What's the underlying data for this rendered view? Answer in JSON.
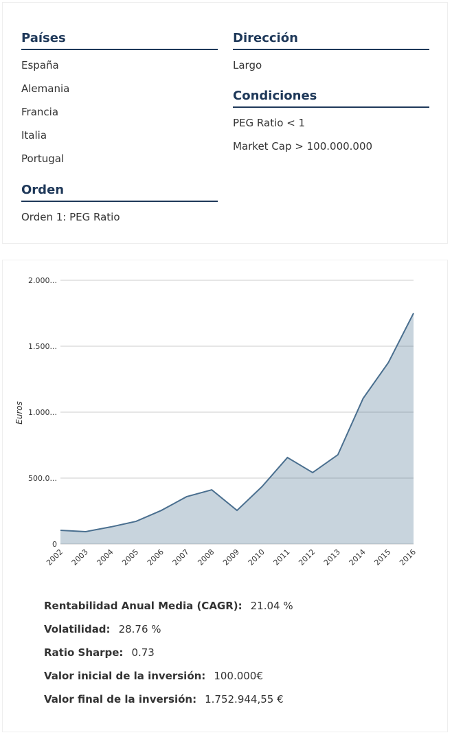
{
  "criteria": {
    "paises": {
      "title": "Países",
      "items": [
        "España",
        "Alemania",
        "Francia",
        "Italia",
        "Portugal"
      ]
    },
    "orden": {
      "title": "Orden",
      "items": [
        "Orden 1: PEG Ratio"
      ]
    },
    "direccion": {
      "title": "Dirección",
      "items": [
        "Largo"
      ]
    },
    "condiciones": {
      "title": "Condiciones",
      "items": [
        "PEG Ratio < 1",
        "Market Cap > 100.000.000"
      ]
    }
  },
  "chart_data": {
    "type": "area",
    "y_label": "Euros",
    "categories": [
      "2002",
      "2003",
      "2004",
      "2005",
      "2006",
      "2007",
      "2008",
      "2009",
      "2010",
      "2011",
      "2012",
      "2013",
      "2014",
      "2015",
      "2016"
    ],
    "series": [
      {
        "color": "#4a6f8f",
        "values": [
          104,
          94,
          130,
          172,
          255,
          359,
          411,
          255,
          437,
          656,
          542,
          677,
          1104,
          1375,
          1750
        ]
      }
    ],
    "ylim": [
      0,
      2000
    ],
    "yticks": [
      0,
      {
        "value": 500,
        "label": "500.0..."
      },
      {
        "value": 1000,
        "label": "1.000..."
      },
      {
        "value": 1500,
        "label": "1.500..."
      },
      {
        "value": 2000,
        "label": "2.000..."
      }
    ],
    "grid": true
  },
  "stats": [
    {
      "label": "Rentabilidad Anual Media (CAGR):",
      "value": "21.04 %"
    },
    {
      "label": "Volatilidad:",
      "value": "28.76 %"
    },
    {
      "label": "Ratio Sharpe:",
      "value": "0.73"
    },
    {
      "label": "Valor inicial de la inversión:",
      "value": "100.000€"
    },
    {
      "label": "Valor final de la inversión:",
      "value": "1.752.944,55 €"
    }
  ]
}
